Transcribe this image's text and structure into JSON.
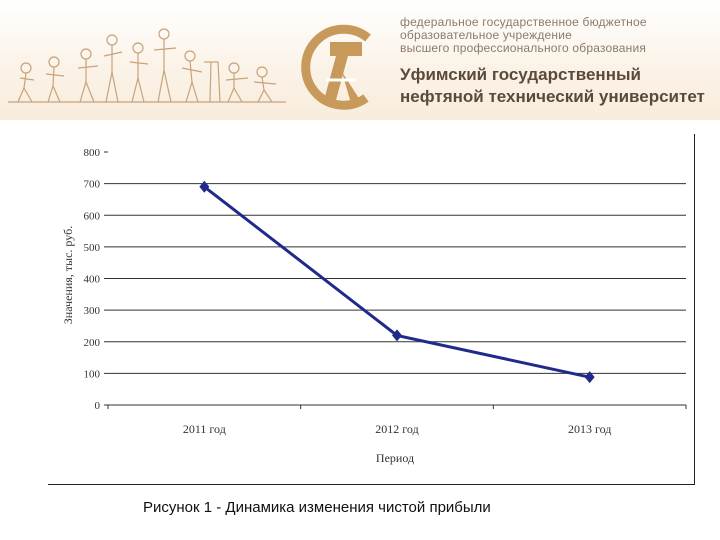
{
  "header": {
    "org_lines": [
      "федеральное государственное бюджетное",
      "образовательное учреждение",
      "высшего профессионального образования"
    ],
    "university_lines": [
      "Уфимский государственный",
      "нефтяной технический университет"
    ],
    "colors": {
      "brand": "#c79a5b",
      "text": "#5a4a3c"
    },
    "icons": [
      "people-sketch-banner",
      "university-logo-emblem"
    ]
  },
  "chart_data": {
    "type": "line",
    "categories": [
      "2011 год",
      "2012 год",
      "2013 год"
    ],
    "series": [
      {
        "values": [
          690,
          220,
          88
        ],
        "color": "#1f2a8a",
        "marker": "diamond"
      }
    ],
    "xlabel": "Период",
    "ylabel": "Значения, тыс. руб.",
    "ylim": [
      0,
      800
    ],
    "yticks": [
      0,
      100,
      200,
      300,
      400,
      500,
      600,
      700,
      800
    ],
    "grid": true,
    "legend": "none"
  },
  "caption": "Рисунок 1 - Динамика изменения чистой прибыли"
}
